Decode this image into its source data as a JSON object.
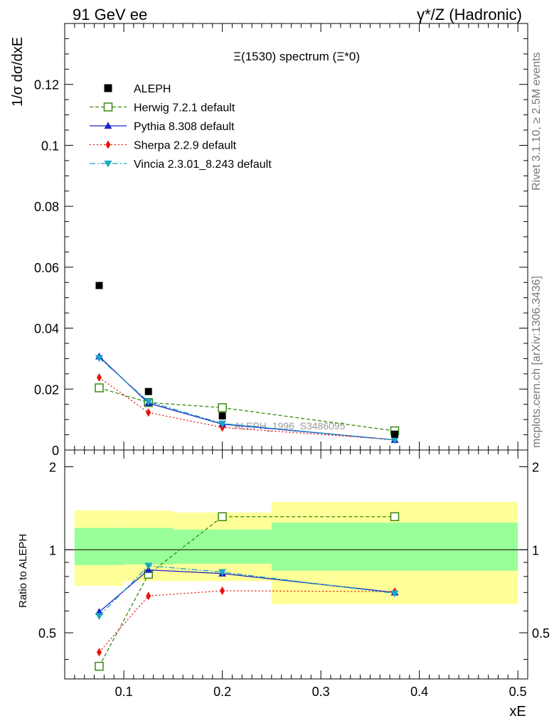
{
  "header": {
    "energy_label": "91 GeV ee",
    "process_label": "γ*/Z (Hadronic)"
  },
  "side_text": {
    "rivet": "Rivet 3.1.10, ≥ 2.5M events",
    "source": "mcplots.cern.ch [arXiv:1306.3436]"
  },
  "chart_data": [
    {
      "type": "line",
      "title": "Ξ(1530) spectrum (Ξ*0)",
      "ylabel": "1/σ dσ/dxE",
      "xlabel": "",
      "watermark": "ALEPH_1996_S3486095",
      "xlim": [
        0.04,
        0.51
      ],
      "ylim": [
        0,
        0.14
      ],
      "y_ticks": [
        0,
        0.02,
        0.04,
        0.06,
        0.08,
        0.1,
        0.12
      ],
      "y_tick_labels": [
        "0",
        "0.02",
        "0.04",
        "0.06",
        "0.08",
        "0.1",
        "0.12"
      ],
      "legend_position": "top-left",
      "data": {
        "name": "ALEPH",
        "x": [
          0.075,
          0.125,
          0.2,
          0.375
        ],
        "y": [
          0.054,
          0.0192,
          0.0112,
          0.0052
        ]
      },
      "series": [
        {
          "name": "Herwig 7.2.1 default",
          "color": "#3a8a12",
          "marker": "open-square",
          "dash": "dashed",
          "x": [
            0.075,
            0.125,
            0.2,
            0.375
          ],
          "y": [
            0.0204,
            0.0156,
            0.0139,
            0.0063
          ]
        },
        {
          "name": "Pythia 8.308 default",
          "color": "#1a22c8",
          "marker": "triangle-up",
          "dash": "solid",
          "x": [
            0.075,
            0.125,
            0.2,
            0.375
          ],
          "y": [
            0.0307,
            0.0154,
            0.0085,
            0.0033
          ]
        },
        {
          "name": "Sherpa 2.2.9 default",
          "color": "#e8150c",
          "marker": "diamond",
          "dash": "dotted",
          "x": [
            0.075,
            0.125,
            0.2,
            0.375
          ],
          "y": [
            0.0238,
            0.0123,
            0.0074,
            0.0034
          ]
        },
        {
          "name": "Vincia 2.3.01_8.243 default",
          "color": "#17a7c4",
          "marker": "triangle-down",
          "dash": "dashdot",
          "x": [
            0.075,
            0.125,
            0.2,
            0.375
          ],
          "y": [
            0.0302,
            0.0159,
            0.0087,
            0.0033
          ]
        }
      ]
    },
    {
      "type": "line",
      "title": "",
      "ylabel": "Ratio to ALEPH",
      "xlabel": "xE",
      "xlim": [
        0.04,
        0.51
      ],
      "ylim": [
        0.34,
        2.3
      ],
      "x_ticks": [
        0.1,
        0.2,
        0.3,
        0.4,
        0.5
      ],
      "x_tick_labels": [
        "0.1",
        "0.2",
        "0.3",
        "0.4",
        "0.5"
      ],
      "y_ticks": [
        0.5,
        1,
        2
      ],
      "y_tick_labels": [
        "0.5",
        "1",
        "2"
      ],
      "y_scale": "log",
      "uncertainty_bands": [
        {
          "x_range": [
            0.05,
            0.1
          ],
          "inner": [
            0.88,
            1.2
          ],
          "outer": [
            0.74,
            1.39
          ]
        },
        {
          "x_range": [
            0.1,
            0.15
          ],
          "inner": [
            0.885,
            1.2
          ],
          "outer": [
            0.77,
            1.385
          ]
        },
        {
          "x_range": [
            0.15,
            0.25
          ],
          "inner": [
            0.89,
            1.185
          ],
          "outer": [
            0.77,
            1.365
          ]
        },
        {
          "x_range": [
            0.25,
            0.5
          ],
          "inner": [
            0.84,
            1.255
          ],
          "outer": [
            0.635,
            1.49
          ]
        }
      ],
      "series": [
        {
          "name": "Herwig 7.2.1 default",
          "color": "#3a8a12",
          "marker": "open-square",
          "dash": "dashed",
          "x": [
            0.075,
            0.125,
            0.2,
            0.375
          ],
          "y": [
            0.378,
            0.815,
            1.318,
            1.318
          ]
        },
        {
          "name": "Pythia 8.308 default",
          "color": "#1a22c8",
          "marker": "triangle-up",
          "dash": "solid",
          "x": [
            0.075,
            0.125,
            0.2,
            0.375
          ],
          "y": [
            0.595,
            0.845,
            0.82,
            0.7
          ]
        },
        {
          "name": "Sherpa 2.2.9 default",
          "color": "#e8150c",
          "marker": "diamond",
          "dash": "dotted",
          "x": [
            0.075,
            0.125,
            0.2,
            0.375
          ],
          "y": [
            0.425,
            0.68,
            0.71,
            0.705
          ]
        },
        {
          "name": "Vincia 2.3.01_8.243 default",
          "color": "#17a7c4",
          "marker": "triangle-down",
          "dash": "dashdot",
          "x": [
            0.075,
            0.125,
            0.2,
            0.375
          ],
          "y": [
            0.575,
            0.875,
            0.83,
            0.695
          ]
        }
      ]
    }
  ]
}
